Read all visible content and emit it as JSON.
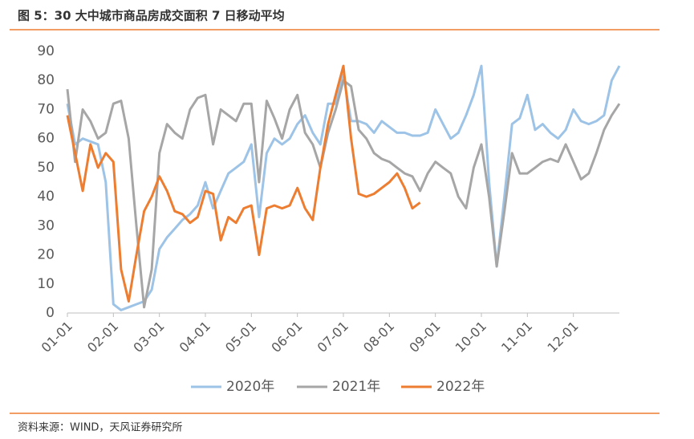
{
  "chart_data": {
    "type": "line",
    "title": "图 5：30 大中城市商品房成交面积 7 日移动平均",
    "source": "资料来源：WIND，天风证券研究所",
    "categories": [
      "01-01",
      null,
      null,
      null,
      null,
      null,
      "02-01",
      null,
      null,
      null,
      null,
      null,
      "03-01",
      null,
      null,
      null,
      null,
      null,
      "04-01",
      null,
      null,
      null,
      null,
      null,
      "05-01",
      null,
      null,
      null,
      null,
      null,
      "06-01",
      null,
      null,
      null,
      null,
      null,
      "07-01",
      null,
      null,
      null,
      null,
      null,
      "08-01",
      null,
      null,
      null,
      null,
      null,
      "09-01",
      null,
      null,
      null,
      null,
      null,
      "10-01",
      null,
      null,
      null,
      null,
      null,
      "11-01",
      null,
      null,
      null,
      null,
      null,
      "12-01",
      null,
      null,
      null,
      null,
      null,
      null
    ],
    "ylim": [
      0,
      90
    ],
    "yticks": [
      0,
      10,
      20,
      30,
      40,
      50,
      60,
      70,
      80,
      90
    ],
    "legend": "bottom",
    "series": [
      {
        "name": "2020年",
        "color": "#9dc3e6",
        "values": [
          72,
          58,
          60,
          59,
          58,
          45,
          3,
          1,
          2,
          3,
          4,
          8,
          22,
          26,
          29,
          32,
          34,
          37,
          45,
          36,
          42,
          48,
          50,
          52,
          58,
          33,
          55,
          60,
          58,
          60,
          65,
          68,
          62,
          58,
          72,
          72,
          82,
          66,
          66,
          65,
          62,
          66,
          64,
          62,
          62,
          61,
          61,
          62,
          70,
          65,
          60,
          62,
          68,
          75,
          85,
          45,
          16,
          40,
          65,
          67,
          75,
          63,
          65,
          62,
          60,
          63,
          70,
          66,
          65,
          66,
          68,
          80,
          85
        ]
      },
      {
        "name": "2021年",
        "color": "#a6a6a6",
        "values": [
          77,
          52,
          70,
          66,
          60,
          62,
          72,
          73,
          60,
          30,
          2,
          15,
          55,
          65,
          62,
          60,
          70,
          74,
          75,
          58,
          70,
          68,
          66,
          72,
          72,
          45,
          73,
          67,
          60,
          70,
          75,
          62,
          58,
          50,
          62,
          70,
          80,
          78,
          63,
          60,
          55,
          53,
          52,
          50,
          48,
          47,
          42,
          48,
          52,
          50,
          48,
          40,
          36,
          50,
          58,
          40,
          16,
          35,
          55,
          48,
          48,
          50,
          52,
          53,
          52,
          58,
          52,
          46,
          48,
          55,
          63,
          68,
          72
        ]
      },
      {
        "name": "2022年",
        "color": "#ed7d31",
        "values": [
          68,
          55,
          42,
          58,
          50,
          55,
          52,
          15,
          4,
          20,
          35,
          40,
          47,
          42,
          35,
          34,
          31,
          33,
          42,
          41,
          25,
          33,
          31,
          36,
          37,
          20,
          36,
          37,
          36,
          37,
          43,
          36,
          32,
          50,
          65,
          75,
          85,
          60,
          41,
          40,
          41,
          43,
          45,
          48,
          43,
          36,
          38,
          null,
          null,
          null,
          null,
          null,
          null,
          null,
          null,
          null,
          null,
          null,
          null,
          null,
          null,
          null,
          null,
          null,
          null,
          null,
          null,
          null,
          null,
          null,
          null,
          null,
          null
        ]
      }
    ]
  }
}
